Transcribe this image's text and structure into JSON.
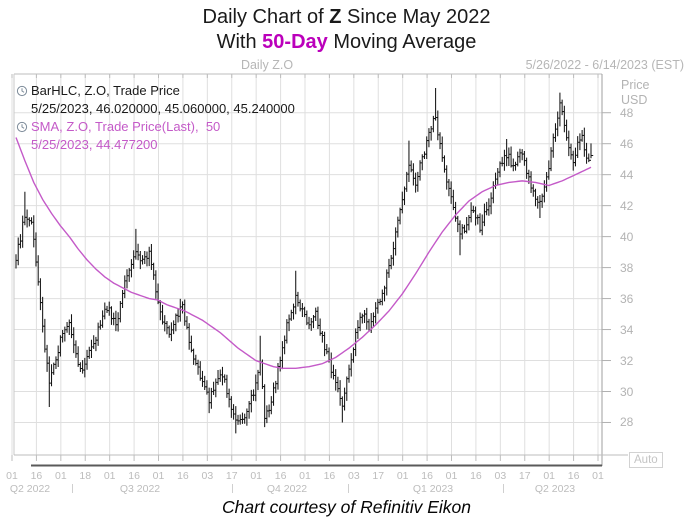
{
  "title": {
    "line1_prefix": "Daily Chart of ",
    "line1_ticker": "Z",
    "line1_suffix": " Since May 2022",
    "line2_prefix": "With ",
    "line2_highlight": "50-Day",
    "line2_suffix": " Moving Average",
    "highlight_color": "#bb00bb"
  },
  "header": {
    "center_label": "Daily Z.O",
    "right_label": "5/26/2022 - 6/14/2023 (EST)"
  },
  "legend": {
    "bar_line1": "BarHLC, Z.O, Trade Price",
    "bar_line2": "5/25/2023, 46.020000, 45.060000, 45.240000",
    "sma_line1": "SMA, Z.O, Trade Price(Last),  50",
    "sma_line2": "5/25/2023, 44.477200"
  },
  "y_axis": {
    "title_line1": "Price",
    "title_line2": "USD",
    "ticks": [
      48,
      46,
      44,
      42,
      40,
      38,
      36,
      34,
      32,
      30,
      28
    ]
  },
  "x_axis": {
    "tick_labels": [
      "01",
      "16",
      "01",
      "18",
      "01",
      "16",
      "01",
      "16",
      "03",
      "17",
      "01",
      "16",
      "01",
      "16",
      "03",
      "17",
      "01",
      "16",
      "01",
      "16",
      "03",
      "17",
      "01",
      "16",
      "01"
    ],
    "quarter_labels": [
      "Q2 2022",
      "Q3 2022",
      "Q4 2022",
      "Q1 2023",
      "Q2 2023"
    ]
  },
  "auto_button_label": "Auto",
  "footer_credit": "Chart courtesy of Refinitiv Eikon",
  "colors": {
    "bar": "#151515",
    "sma": "#c45ac8",
    "grid": "#dfdfdf",
    "frame": "#bdbdbd",
    "range_bar": "#5a5a5a",
    "axis_text": "#b3b3b3"
  },
  "chart_data": {
    "type": "bar",
    "subtype": "ohlc-hlc-bars-with-sma-line",
    "symbol": "Z.O",
    "interval": "Daily",
    "date_range": "5/26/2022 - 6/14/2023",
    "ylim": [
      25.9,
      50.5
    ],
    "grid": true,
    "legend_position": "top-left",
    "trading_days": 260,
    "last_bar": {
      "date": "5/25/2023",
      "high": 46.02,
      "low": 45.06,
      "close": 45.24
    },
    "sma_period": 50,
    "sma_last_value": 44.4772,
    "close_anchors": [
      [
        0,
        38.6
      ],
      [
        2,
        39.9
      ],
      [
        4,
        41.5
      ],
      [
        7,
        40.8
      ],
      [
        10,
        37.2
      ],
      [
        13,
        32.6
      ],
      [
        15,
        30.6
      ],
      [
        18,
        32.1
      ],
      [
        21,
        33.9
      ],
      [
        24,
        34.5
      ],
      [
        27,
        32.3
      ],
      [
        30,
        31.2
      ],
      [
        33,
        32.7
      ],
      [
        36,
        33.4
      ],
      [
        39,
        35.0
      ],
      [
        42,
        35.3
      ],
      [
        45,
        34.2
      ],
      [
        48,
        36.4
      ],
      [
        51,
        37.9
      ],
      [
        54,
        39.0
      ],
      [
        57,
        38.3
      ],
      [
        60,
        39.0
      ],
      [
        63,
        36.5
      ],
      [
        66,
        34.7
      ],
      [
        69,
        33.5
      ],
      [
        72,
        34.9
      ],
      [
        75,
        35.5
      ],
      [
        78,
        33.4
      ],
      [
        81,
        31.8
      ],
      [
        84,
        30.7
      ],
      [
        87,
        29.3
      ],
      [
        90,
        30.7
      ],
      [
        93,
        31.2
      ],
      [
        96,
        29.3
      ],
      [
        99,
        28.4
      ],
      [
        102,
        28.0
      ],
      [
        105,
        29.1
      ],
      [
        108,
        30.5
      ],
      [
        110,
        31.8
      ],
      [
        112,
        28.3
      ],
      [
        114,
        28.8
      ],
      [
        117,
        30.6
      ],
      [
        120,
        32.9
      ],
      [
        123,
        34.8
      ],
      [
        126,
        36.2
      ],
      [
        129,
        35.3
      ],
      [
        132,
        34.1
      ],
      [
        135,
        35.0
      ],
      [
        138,
        33.4
      ],
      [
        141,
        31.8
      ],
      [
        144,
        30.4
      ],
      [
        147,
        29.2
      ],
      [
        150,
        31.4
      ],
      [
        153,
        33.6
      ],
      [
        156,
        35.1
      ],
      [
        159,
        34.0
      ],
      [
        162,
        35.2
      ],
      [
        165,
        36.4
      ],
      [
        168,
        38.0
      ],
      [
        171,
        40.2
      ],
      [
        174,
        42.6
      ],
      [
        177,
        44.6
      ],
      [
        180,
        43.5
      ],
      [
        183,
        45.0
      ],
      [
        186,
        46.6
      ],
      [
        189,
        47.8
      ],
      [
        191,
        45.8
      ],
      [
        194,
        43.8
      ],
      [
        197,
        41.9
      ],
      [
        200,
        40.1
      ],
      [
        203,
        40.8
      ],
      [
        206,
        41.8
      ],
      [
        209,
        40.6
      ],
      [
        212,
        41.7
      ],
      [
        215,
        43.2
      ],
      [
        218,
        44.5
      ],
      [
        221,
        45.3
      ],
      [
        224,
        44.6
      ],
      [
        227,
        45.5
      ],
      [
        230,
        44.3
      ],
      [
        233,
        42.9
      ],
      [
        236,
        42.0
      ],
      [
        239,
        43.6
      ],
      [
        242,
        46.2
      ],
      [
        245,
        48.5
      ],
      [
        247,
        47.2
      ],
      [
        249,
        45.9
      ],
      [
        251,
        44.8
      ],
      [
        253,
        45.9
      ],
      [
        255,
        46.3
      ],
      [
        257,
        44.9
      ],
      [
        259,
        45.24
      ]
    ],
    "high_overrides": [
      [
        4,
        42.9
      ],
      [
        54,
        40.5
      ],
      [
        110,
        33.6
      ],
      [
        126,
        37.8
      ],
      [
        177,
        46.2
      ],
      [
        189,
        49.6
      ],
      [
        221,
        46.3
      ],
      [
        245,
        49.3
      ]
    ],
    "low_overrides": [
      [
        15,
        29.0
      ],
      [
        87,
        28.6
      ],
      [
        99,
        27.3
      ],
      [
        112,
        27.7
      ],
      [
        147,
        28.0
      ],
      [
        200,
        38.8
      ],
      [
        236,
        41.2
      ]
    ],
    "sma_anchors": [
      [
        0,
        46.4
      ],
      [
        4,
        44.9
      ],
      [
        8,
        43.5
      ],
      [
        12,
        42.4
      ],
      [
        16,
        41.5
      ],
      [
        20,
        40.7
      ],
      [
        24,
        40.0
      ],
      [
        28,
        39.2
      ],
      [
        32,
        38.5
      ],
      [
        36,
        37.9
      ],
      [
        40,
        37.4
      ],
      [
        44,
        37.0
      ],
      [
        48,
        36.7
      ],
      [
        52,
        36.4
      ],
      [
        56,
        36.2
      ],
      [
        60,
        36.0
      ],
      [
        64,
        35.9
      ],
      [
        68,
        35.6
      ],
      [
        72,
        35.4
      ],
      [
        76,
        35.2
      ],
      [
        80,
        34.9
      ],
      [
        84,
        34.6
      ],
      [
        88,
        34.2
      ],
      [
        92,
        33.8
      ],
      [
        96,
        33.3
      ],
      [
        100,
        32.8
      ],
      [
        104,
        32.4
      ],
      [
        108,
        32.0
      ],
      [
        112,
        31.8
      ],
      [
        116,
        31.6
      ],
      [
        120,
        31.5
      ],
      [
        126,
        31.5
      ],
      [
        132,
        31.6
      ],
      [
        138,
        31.8
      ],
      [
        144,
        32.2
      ],
      [
        150,
        32.8
      ],
      [
        156,
        33.5
      ],
      [
        162,
        34.3
      ],
      [
        168,
        35.2
      ],
      [
        174,
        36.3
      ],
      [
        180,
        37.6
      ],
      [
        186,
        39.0
      ],
      [
        192,
        40.3
      ],
      [
        198,
        41.4
      ],
      [
        204,
        42.3
      ],
      [
        210,
        42.9
      ],
      [
        216,
        43.3
      ],
      [
        222,
        43.5
      ],
      [
        228,
        43.6
      ],
      [
        234,
        43.5
      ],
      [
        240,
        43.3
      ],
      [
        246,
        43.6
      ],
      [
        252,
        44.0
      ],
      [
        259,
        44.4772
      ]
    ]
  }
}
